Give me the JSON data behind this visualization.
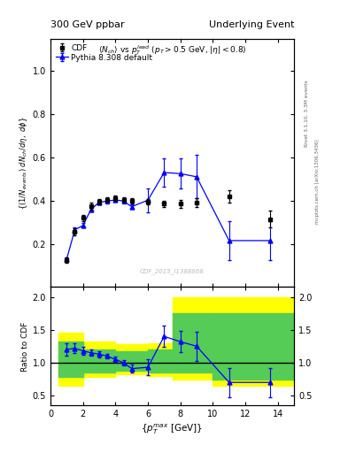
{
  "title_left": "300 GeV ppbar",
  "title_right": "Underlying Event",
  "right_label_top": "Rivet 3.1.10, 3.3M events",
  "right_label_bottom": "mcplots.cern.ch [arXiv:1306.3436]",
  "watermark": "CDF_2015_I1388868",
  "ratio_ylabel": "Ratio to CDF",
  "xlabel": "{p_{T}^{max} [GeV]}",
  "main_ylim": [
    0,
    1.15
  ],
  "ratio_ylim": [
    0.35,
    2.15
  ],
  "xlim": [
    0,
    15
  ],
  "ratio_yticks": [
    0.5,
    1.0,
    1.5,
    2.0
  ],
  "main_yticks": [
    0.2,
    0.4,
    0.6,
    0.8,
    1.0
  ],
  "cdf_x": [
    1.0,
    1.5,
    2.0,
    2.5,
    3.0,
    3.5,
    4.0,
    4.5,
    5.0,
    6.0,
    7.0,
    8.0,
    9.0,
    11.0,
    13.5
  ],
  "cdf_y": [
    0.125,
    0.255,
    0.32,
    0.375,
    0.395,
    0.405,
    0.41,
    0.405,
    0.4,
    0.395,
    0.385,
    0.385,
    0.39,
    0.42,
    0.315
  ],
  "cdf_yerr": [
    0.012,
    0.015,
    0.015,
    0.015,
    0.012,
    0.012,
    0.012,
    0.012,
    0.012,
    0.012,
    0.015,
    0.02,
    0.02,
    0.03,
    0.04
  ],
  "mc_x": [
    1.0,
    1.5,
    2.0,
    2.5,
    3.0,
    3.5,
    4.0,
    4.5,
    5.0,
    6.0,
    7.0,
    8.0,
    9.0,
    11.0,
    13.5
  ],
  "mc_y": [
    0.13,
    0.265,
    0.285,
    0.36,
    0.392,
    0.398,
    0.403,
    0.398,
    0.372,
    0.402,
    0.53,
    0.525,
    0.51,
    0.215,
    0.215
  ],
  "mc_yerr": [
    0.008,
    0.01,
    0.01,
    0.01,
    0.01,
    0.01,
    0.01,
    0.01,
    0.01,
    0.055,
    0.065,
    0.07,
    0.1,
    0.09,
    0.09
  ],
  "ratio_x": [
    1.0,
    1.5,
    2.0,
    2.5,
    3.0,
    3.5,
    4.0,
    4.5,
    5.0,
    6.0,
    7.0,
    8.0,
    9.0,
    11.0,
    13.5
  ],
  "ratio_y": [
    1.2,
    1.22,
    1.18,
    1.15,
    1.13,
    1.1,
    1.05,
    1.0,
    0.91,
    0.93,
    1.4,
    1.32,
    1.25,
    0.7,
    0.7
  ],
  "ratio_yerr": [
    0.1,
    0.07,
    0.06,
    0.05,
    0.05,
    0.04,
    0.04,
    0.04,
    0.06,
    0.12,
    0.16,
    0.16,
    0.22,
    0.22,
    0.22
  ],
  "yellow_band_edges": [
    0.5,
    2.0,
    4.0,
    6.0,
    7.5,
    10.0,
    15.0
  ],
  "yellow_band_lo": [
    0.65,
    0.78,
    0.82,
    0.8,
    0.75,
    0.65,
    0.65
  ],
  "yellow_band_hi": [
    1.45,
    1.32,
    1.28,
    1.3,
    2.0,
    2.0,
    2.0
  ],
  "green_band_edges": [
    0.5,
    2.0,
    4.0,
    6.0,
    7.5,
    10.0,
    15.0
  ],
  "green_band_lo": [
    0.78,
    0.85,
    0.88,
    0.85,
    0.85,
    0.75,
    0.75
  ],
  "green_band_hi": [
    1.32,
    1.2,
    1.18,
    1.2,
    1.75,
    1.75,
    1.75
  ],
  "cdf_color": "black",
  "mc_color": "blue",
  "yellow_color": "#ffff00",
  "green_color": "#55cc55"
}
